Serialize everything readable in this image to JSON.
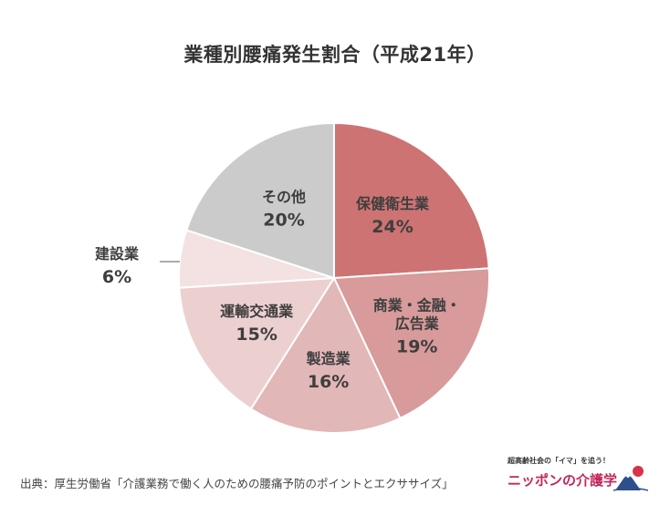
{
  "colors": {
    "slices": [
      "#cd7373",
      "#d89a9a",
      "#e2b7b7",
      "#ecd0d0",
      "#f4e1e1",
      "#cbcbcb"
    ],
    "text": "#3e3e3e",
    "logo_accent": "#c2265a"
  },
  "chart_data": {
    "type": "pie",
    "title": "業種別腰痛発生割合（平成21年）",
    "slices": [
      {
        "lines": [
          "保健衛生業"
        ],
        "value": 24,
        "value_label": "24%"
      },
      {
        "lines": [
          "商業・金融・",
          "広告業"
        ],
        "value": 19,
        "value_label": "19%"
      },
      {
        "lines": [
          "製造業"
        ],
        "value": 16,
        "value_label": "16%"
      },
      {
        "lines": [
          "運輸交通業"
        ],
        "value": 15,
        "value_label": "15%"
      },
      {
        "lines": [
          "建設業"
        ],
        "value": 6,
        "value_label": "6%"
      },
      {
        "lines": [
          "その他"
        ],
        "value": 20,
        "value_label": "20%"
      }
    ],
    "start_angle_deg": 0,
    "direction": "clockwise",
    "legend": "none"
  },
  "footer": {
    "source": "出典：厚生労働省「介護業務で働く人のための腰痛予防のポイントとエクササイズ」"
  },
  "logo": {
    "tagline": "超高齢社会の「イマ」を追う！",
    "name": "ニッポンの介護学",
    "icon": "mount-fuji-icon"
  }
}
